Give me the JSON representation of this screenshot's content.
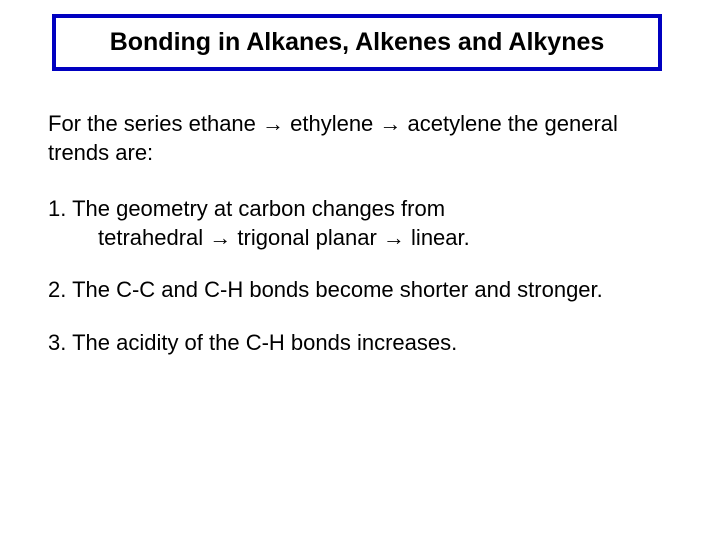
{
  "title": "Bonding in Alkanes, Alkenes and Alkynes",
  "intro": {
    "line1": "For the series ethane → ethylene → acetylene the general",
    "line2": "trends are:"
  },
  "points": {
    "p1": {
      "line1": "1. The geometry at carbon changes from",
      "line2": "tetrahedral → trigonal planar → linear."
    },
    "p2": "2. The C-C and C-H bonds become shorter and stronger.",
    "p3": "3. The acidity of the C-H bonds increases."
  },
  "colors": {
    "border": "#0000c0",
    "text": "#000000",
    "background": "#ffffff"
  },
  "typography": {
    "title_fontsize": 25,
    "title_weight": "bold",
    "body_fontsize": 22,
    "font_family": "Arial"
  }
}
